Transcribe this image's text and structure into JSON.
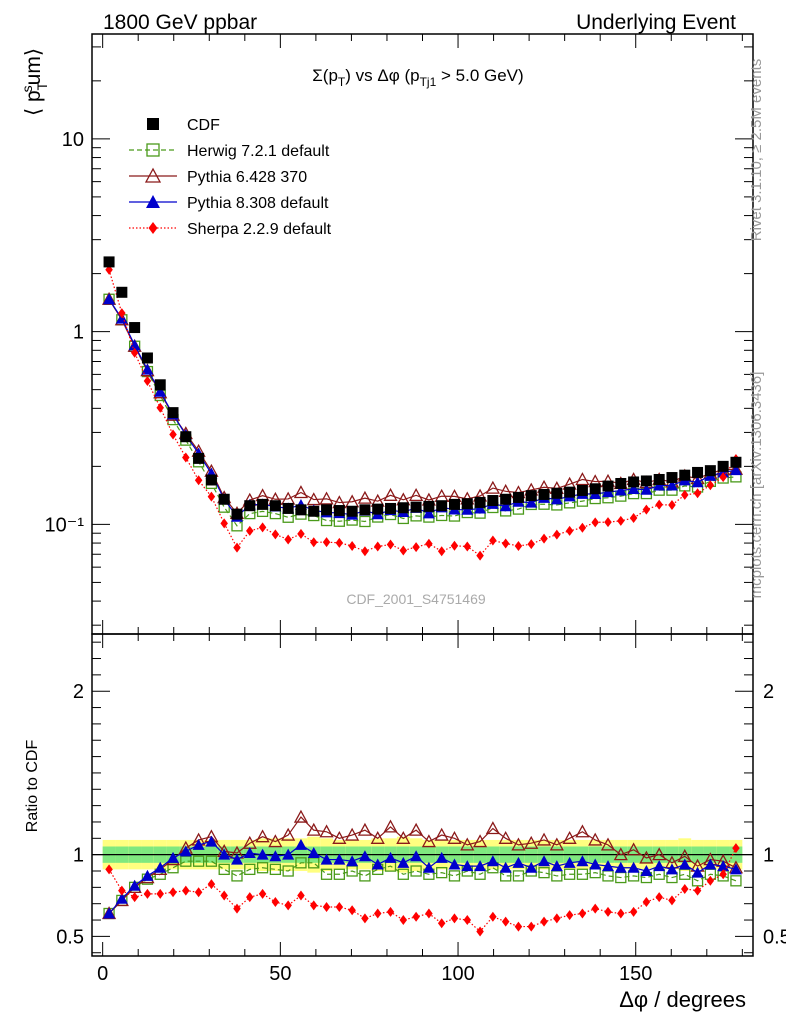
{
  "header": {
    "left": "1800 GeV ppbar",
    "right": "Underlying Event"
  },
  "side_text": {
    "rivet": "Rivet 3.1.10, ≥ 2.5M events",
    "mcplots": "mcplots.cern.ch [arXiv:1306.3436]"
  },
  "watermark": "CDF_2001_S4751469",
  "chart_data": {
    "type": "scatter",
    "title": "Σ(p_T) vs Δφ (p_Tj1 > 5.0 GeV)",
    "xlabel": "Δφ / degrees",
    "ylabel": "⟨ p_T^sum ⟩",
    "ratio_ylabel": "Ratio to CDF",
    "main_yscale": "log",
    "xlim": [
      -3,
      183
    ],
    "ylim": [
      0.027,
      35
    ],
    "ratio_ylim": [
      0.38,
      2.35
    ],
    "x_ticks": [
      0,
      50,
      100,
      150
    ],
    "main_y_ticks": [
      {
        "v": 0.1,
        "label": "10⁻¹"
      },
      {
        "v": 1,
        "label": "1"
      },
      {
        "v": 10,
        "label": "10"
      }
    ],
    "ratio_y_ticks": [
      0.5,
      1,
      2
    ],
    "x": [
      1.8,
      5.4,
      9.0,
      12.6,
      16.2,
      19.8,
      23.4,
      27.0,
      30.6,
      34.2,
      37.8,
      41.4,
      45.0,
      48.6,
      52.2,
      55.8,
      59.4,
      63.0,
      66.6,
      70.2,
      73.8,
      77.4,
      81.0,
      84.6,
      88.2,
      91.8,
      95.4,
      99.0,
      102.6,
      106.2,
      109.8,
      113.4,
      117.0,
      120.6,
      124.2,
      127.8,
      131.4,
      135.0,
      138.6,
      142.2,
      145.8,
      149.4,
      153.0,
      156.6,
      160.2,
      163.8,
      167.4,
      171.0,
      174.6,
      178.2
    ],
    "cdf": [
      2.3,
      1.6,
      1.05,
      0.73,
      0.53,
      0.38,
      0.285,
      0.22,
      0.17,
      0.135,
      0.113,
      0.125,
      0.127,
      0.125,
      0.121,
      0.119,
      0.117,
      0.119,
      0.118,
      0.117,
      0.119,
      0.12,
      0.121,
      0.122,
      0.123,
      0.124,
      0.125,
      0.127,
      0.128,
      0.13,
      0.133,
      0.135,
      0.138,
      0.141,
      0.143,
      0.145,
      0.147,
      0.15,
      0.153,
      0.158,
      0.163,
      0.166,
      0.168,
      0.171,
      0.175,
      0.18,
      0.186,
      0.19,
      0.2,
      0.21
    ],
    "series": [
      {
        "name": "Herwig 7.2.1 default",
        "color": "#4a9a1a",
        "marker": "open-square",
        "line": "dashed",
        "ratio": [
          0.64,
          0.72,
          0.8,
          0.85,
          0.88,
          0.92,
          0.96,
          0.96,
          0.96,
          0.91,
          0.87,
          0.91,
          0.92,
          0.91,
          0.9,
          0.95,
          0.95,
          0.88,
          0.88,
          0.9,
          0.87,
          0.91,
          0.93,
          0.88,
          0.9,
          0.88,
          0.89,
          0.87,
          0.9,
          0.88,
          0.92,
          0.87,
          0.87,
          0.9,
          0.89,
          0.87,
          0.88,
          0.88,
          0.89,
          0.87,
          0.86,
          0.87,
          0.86,
          0.88,
          0.86,
          0.88,
          0.84,
          0.88,
          0.87,
          0.84
        ]
      },
      {
        "name": "Pythia 6.428 370",
        "color": "#8b1a1a",
        "marker": "open-triangle",
        "line": "solid",
        "ratio": [
          0.64,
          0.72,
          0.8,
          0.86,
          0.91,
          0.97,
          1.04,
          1.09,
          1.11,
          1.02,
          1.01,
          1.07,
          1.11,
          1.08,
          1.12,
          1.23,
          1.15,
          1.14,
          1.1,
          1.12,
          1.15,
          1.1,
          1.17,
          1.1,
          1.15,
          1.08,
          1.12,
          1.1,
          1.06,
          1.08,
          1.16,
          1.1,
          1.06,
          1.07,
          1.09,
          1.06,
          1.1,
          1.14,
          1.09,
          1.06,
          1.0,
          1.03,
          0.98,
          1.0,
          0.95,
          0.99,
          0.93,
          0.97,
          0.96,
          0.92
        ]
      },
      {
        "name": "Pythia 8.308 default",
        "color": "#0000cc",
        "marker": "filled-triangle",
        "line": "solid",
        "ratio": [
          0.64,
          0.73,
          0.81,
          0.87,
          0.92,
          0.98,
          1.02,
          1.06,
          1.08,
          1.0,
          0.97,
          1.01,
          1.0,
          0.99,
          1.0,
          1.06,
          1.01,
          0.97,
          0.97,
          0.96,
          0.99,
          0.94,
          0.98,
          0.95,
          0.99,
          0.92,
          0.98,
          0.94,
          0.93,
          0.93,
          0.96,
          0.92,
          0.95,
          0.92,
          0.96,
          0.93,
          0.95,
          0.96,
          0.94,
          0.93,
          0.92,
          0.92,
          0.9,
          0.93,
          0.91,
          0.94,
          0.89,
          0.94,
          0.93,
          0.91
        ]
      },
      {
        "name": "Sherpa 2.2.9 default",
        "color": "#ff0000",
        "marker": "filled-diamond",
        "line": "dotted",
        "ratio": [
          0.91,
          0.78,
          0.74,
          0.76,
          0.76,
          0.77,
          0.78,
          0.77,
          0.82,
          0.75,
          0.67,
          0.74,
          0.76,
          0.71,
          0.69,
          0.75,
          0.69,
          0.68,
          0.68,
          0.66,
          0.61,
          0.64,
          0.65,
          0.6,
          0.62,
          0.64,
          0.58,
          0.61,
          0.6,
          0.53,
          0.62,
          0.59,
          0.56,
          0.56,
          0.59,
          0.61,
          0.63,
          0.64,
          0.67,
          0.65,
          0.64,
          0.65,
          0.71,
          0.74,
          0.72,
          0.79,
          0.78,
          0.84,
          0.88,
          1.04
        ]
      }
    ],
    "band_inner": [
      0.05,
      0.05,
      0.05,
      0.05,
      0.05,
      0.05,
      0.05,
      0.05,
      0.05,
      0.05,
      0.05,
      0.05,
      0.05,
      0.05,
      0.05,
      0.05,
      0.05,
      0.05,
      0.05,
      0.05,
      0.05,
      0.05,
      0.05,
      0.05,
      0.05,
      0.05,
      0.05,
      0.05,
      0.05,
      0.05,
      0.05,
      0.05,
      0.05,
      0.05,
      0.05,
      0.05,
      0.05,
      0.05,
      0.05,
      0.05,
      0.05,
      0.05,
      0.05,
      0.05,
      0.05,
      0.05,
      0.05,
      0.05,
      0.05,
      0.05
    ],
    "band_outer": [
      0.09,
      0.09,
      0.09,
      0.09,
      0.09,
      0.09,
      0.09,
      0.09,
      0.09,
      0.09,
      0.09,
      0.09,
      0.1,
      0.1,
      0.1,
      0.1,
      0.11,
      0.1,
      0.09,
      0.09,
      0.09,
      0.1,
      0.1,
      0.11,
      0.1,
      0.09,
      0.09,
      0.09,
      0.09,
      0.09,
      0.09,
      0.09,
      0.09,
      0.09,
      0.09,
      0.09,
      0.09,
      0.09,
      0.09,
      0.09,
      0.09,
      0.09,
      0.09,
      0.09,
      0.09,
      0.1,
      0.09,
      0.09,
      0.09,
      0.09
    ],
    "legend_position": "top-left",
    "legend_entries": [
      "CDF",
      "Herwig 7.2.1 default",
      "Pythia 6.428 370",
      "Pythia 8.308 default",
      "Sherpa 2.2.9 default"
    ],
    "colors": {
      "band_inner": "#7fe87f",
      "band_outer": "#ffff80",
      "data": "#000000"
    }
  }
}
